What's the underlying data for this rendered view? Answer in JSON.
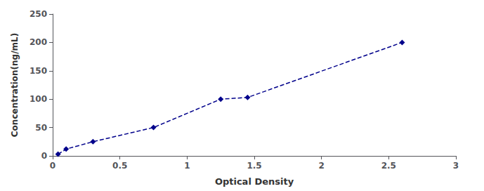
{
  "chart_data": {
    "type": "line",
    "x": [
      0.04,
      0.1,
      0.3,
      0.75,
      1.25,
      1.45,
      2.6
    ],
    "values": [
      3,
      12,
      25,
      50,
      100,
      103,
      200
    ],
    "color": "#00008B",
    "marker": "diamond",
    "line_style": "dashed",
    "xlabel": "Optical Density",
    "ylabel": "Concentration(ng/mL)",
    "xlim": [
      0,
      3
    ],
    "ylim": [
      0,
      250
    ],
    "xticks": [
      0,
      0.5,
      1,
      1.5,
      2,
      2.5,
      3
    ],
    "yticks": [
      0,
      50,
      100,
      150,
      200,
      250
    ],
    "grid": false
  }
}
